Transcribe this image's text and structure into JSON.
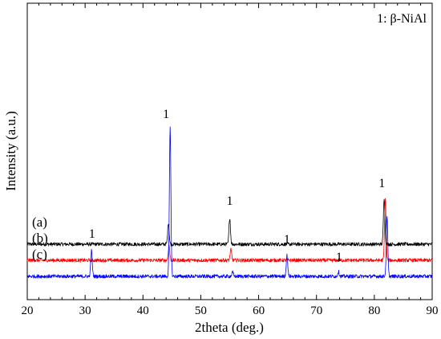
{
  "chart_data": {
    "type": "line",
    "xlabel": "2theta (deg.)",
    "ylabel": "Intensity (a.u.)",
    "xlim": [
      20,
      90
    ],
    "xticks": [
      "20",
      "30",
      "40",
      "50",
      "60",
      "70",
      "80",
      "90"
    ],
    "yticks_shown": false,
    "legend": {
      "text": "1: β-NiAl",
      "placement": "top-right"
    },
    "series": [
      {
        "label": "(a)",
        "color": "#000000",
        "baseline": 0.56,
        "peaks": [
          {
            "x": 44.4,
            "height": 0.27
          },
          {
            "x": 55.0,
            "height": 0.33
          },
          {
            "x": 81.7,
            "height": 0.58
          }
        ]
      },
      {
        "label": "(b)",
        "color": "#ff0000",
        "baseline": 0.36,
        "peaks": [
          {
            "x": 44.5,
            "height": 0.19
          },
          {
            "x": 55.2,
            "height": 0.13
          },
          {
            "x": 81.9,
            "height": 0.77
          }
        ]
      },
      {
        "label": "(c)",
        "color": "#0000ff",
        "baseline": 0.16,
        "peaks": [
          {
            "x": 31.1,
            "height": 0.32
          },
          {
            "x": 44.7,
            "height": 1.84
          },
          {
            "x": 55.5,
            "height": 0.05
          },
          {
            "x": 64.9,
            "height": 0.26
          },
          {
            "x": 73.8,
            "height": 0.06
          },
          {
            "x": 82.2,
            "height": 0.73
          }
        ]
      }
    ],
    "peak_annotations": [
      {
        "x": 44.0,
        "y": 2.13,
        "text": "1"
      },
      {
        "x": 55.0,
        "y": 1.05,
        "text": "1"
      },
      {
        "x": 81.3,
        "y": 1.27,
        "text": "1"
      },
      {
        "x": 31.2,
        "y": 0.64,
        "text": "1"
      },
      {
        "x": 64.9,
        "y": 0.57,
        "text": "1"
      },
      {
        "x": 73.9,
        "y": 0.35,
        "text": "1"
      }
    ]
  }
}
